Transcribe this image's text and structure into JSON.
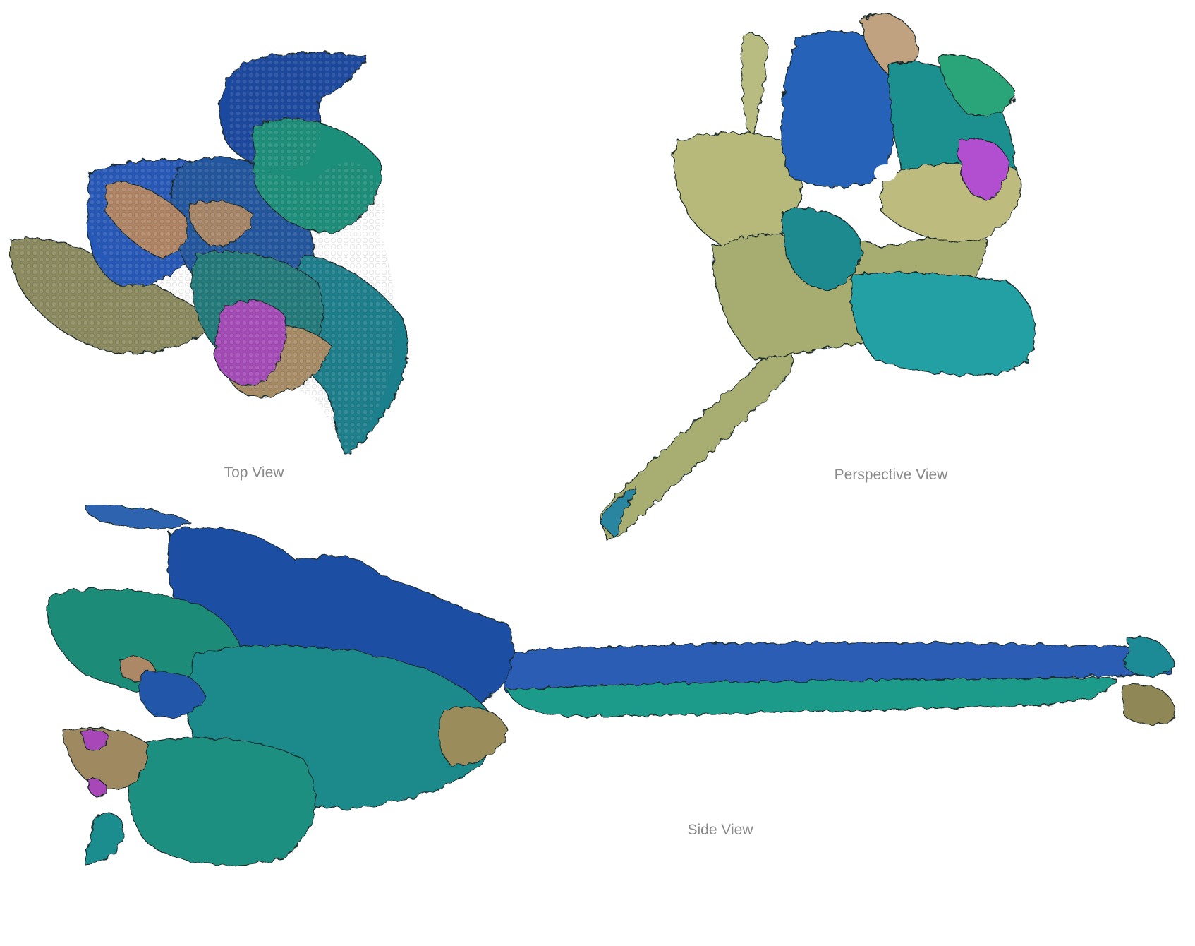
{
  "views": [
    {
      "key": "top",
      "label": "Top View"
    },
    {
      "key": "perspective",
      "label": "Perspective View"
    },
    {
      "key": "side",
      "label": "Side View"
    }
  ],
  "colors": {
    "background": "#ffffff",
    "label": "#8a8a8a",
    "navy": "#1f4aa0",
    "blue": "#2a66c4",
    "teal": "#1c8c8a",
    "cyan": "#24a9b5",
    "green": "#2da06c",
    "khaki": "#b8b878",
    "tan": "#b5906a",
    "olive": "#8e9360",
    "magenta": "#b04fc4"
  }
}
